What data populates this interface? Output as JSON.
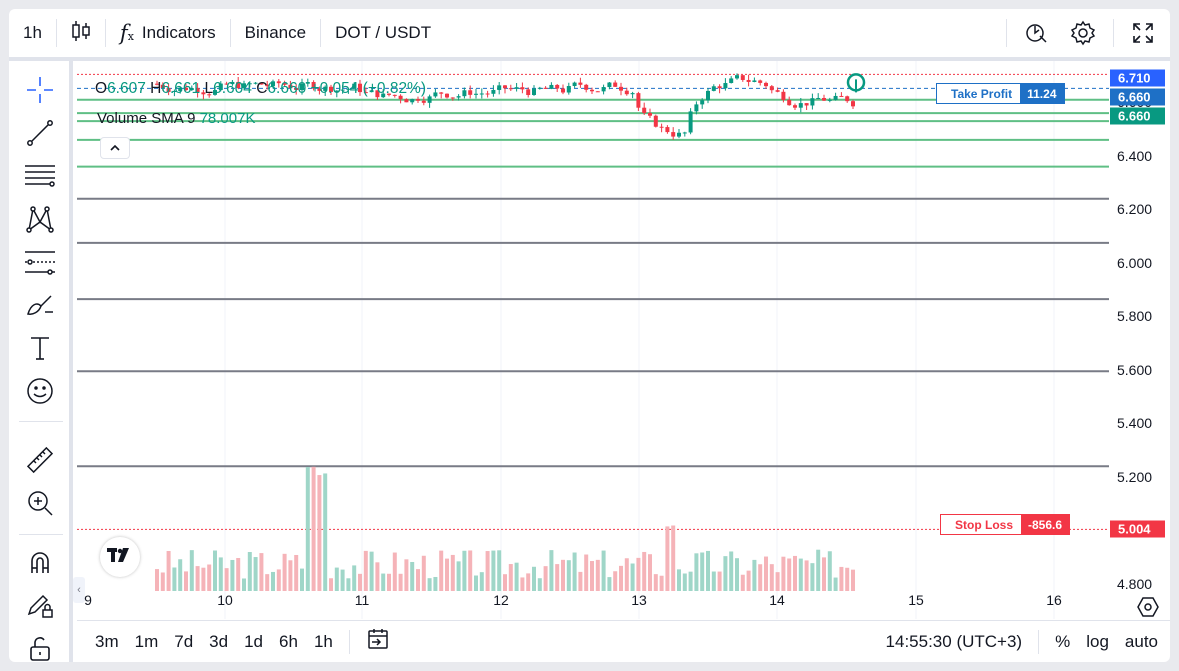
{
  "toolbar": {
    "interval": "1h",
    "indicators_label": "Indicators",
    "exchange": "Binance",
    "symbol": "DOT / USDT"
  },
  "legend": {
    "o_label": "O",
    "open": "6.607",
    "h_label": "H",
    "high": "6.661",
    "l_label": "L",
    "low": "6.604",
    "c_label": "C",
    "close": "6.660",
    "change": "+0.054 (+0.82%)",
    "volume_label": "Volume",
    "sma_label": "SMA 9",
    "volume_value": "78.007K"
  },
  "price_axis": {
    "ticks": [
      "6.600",
      "6.400",
      "6.200",
      "6.000",
      "5.800",
      "5.600",
      "5.400",
      "5.200",
      "4.800"
    ],
    "labels": {
      "high": "6.710",
      "tp": "6.660",
      "last": "6.660",
      "sl": "5.004"
    }
  },
  "orders": {
    "take_profit": {
      "name": "Take Profit",
      "value": "11.24"
    },
    "stop_loss": {
      "name": "Stop Loss",
      "value": "-856.6"
    }
  },
  "time_axis": [
    "9",
    "10",
    "11",
    "12",
    "13",
    "14",
    "15",
    "16"
  ],
  "bottom": {
    "ranges": [
      "3m",
      "1m",
      "7d",
      "3d",
      "1d",
      "6h",
      "1h"
    ],
    "clock": "14:55:30 (UTC+3)",
    "percent": "%",
    "log": "log",
    "auto": "auto"
  },
  "colors": {
    "up": "#089981",
    "down": "#f23645",
    "tp": "#1e70c6",
    "sl": "#f23645",
    "hline_green": "#5fbf85",
    "hline_gray": "#787b86"
  },
  "chart_data": {
    "type": "candlestick",
    "title": "",
    "x": [
      "9",
      "10",
      "11",
      "12",
      "13",
      "14",
      "15",
      "16"
    ],
    "ylim": [
      4.75,
      6.75
    ],
    "ohlc_last": {
      "open": 6.607,
      "high": 6.661,
      "low": 6.604,
      "close": 6.66
    },
    "horizontal_levels": [
      6.61,
      6.56,
      6.53,
      6.46,
      6.36,
      6.24,
      6.075,
      5.865,
      5.595,
      5.24
    ],
    "take_profit": 6.66,
    "stop_loss": 5.004,
    "last_price": 6.66
  }
}
